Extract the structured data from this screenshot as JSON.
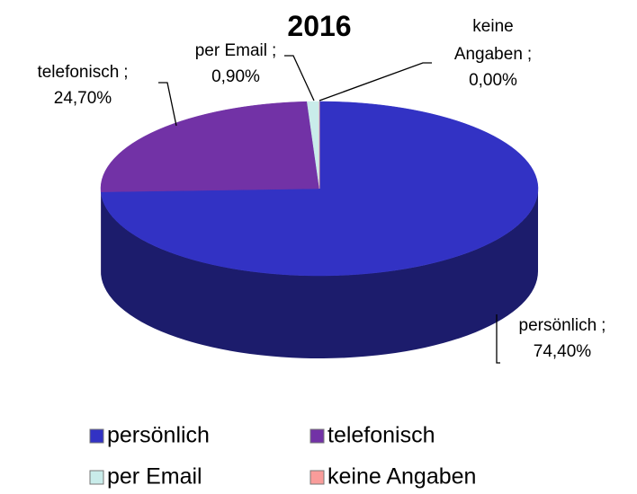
{
  "chart_data": {
    "type": "pie",
    "title": "2016",
    "categories": [
      "persönlich",
      "telefonisch",
      "per Email",
      "keine Angaben"
    ],
    "values": [
      74.4,
      24.7,
      0.9,
      0.0
    ],
    "value_labels": [
      "74,40%",
      "24,70%",
      "0,90%",
      "0,00%"
    ],
    "label_separator": ";",
    "colors": [
      "#3232c4",
      "#7232a6",
      "#c9ecea",
      "#f99c9a"
    ],
    "legend": "bottom"
  }
}
